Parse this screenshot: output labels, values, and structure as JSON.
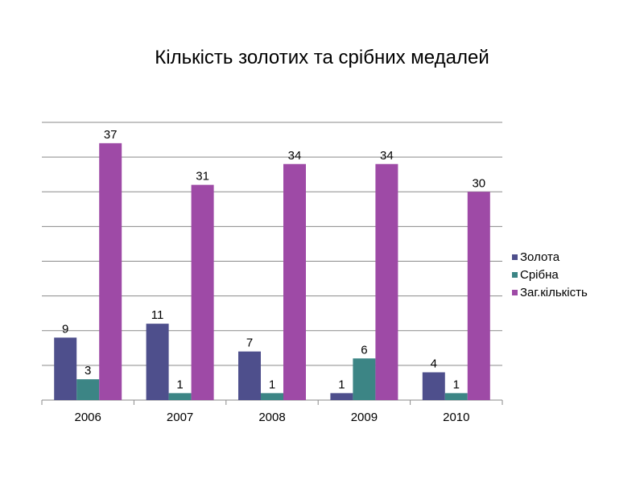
{
  "chart_data": {
    "type": "bar",
    "title": "Кількість золотих та срібних медалей",
    "categories": [
      "2006",
      "2007",
      "2008",
      "2009",
      "2010"
    ],
    "series": [
      {
        "name": "Золота",
        "values": [
          9,
          11,
          7,
          1,
          4
        ],
        "color": "#4e4f8c"
      },
      {
        "name": "Срібна",
        "values": [
          3,
          1,
          1,
          6,
          1
        ],
        "color": "#3c8585"
      },
      {
        "name": "Заг.кількість",
        "values": [
          37,
          31,
          34,
          34,
          30
        ],
        "color": "#9e4aa6"
      }
    ],
    "ylim": [
      0,
      40
    ],
    "grid": true,
    "legend_position": "right",
    "data_labels": true
  }
}
